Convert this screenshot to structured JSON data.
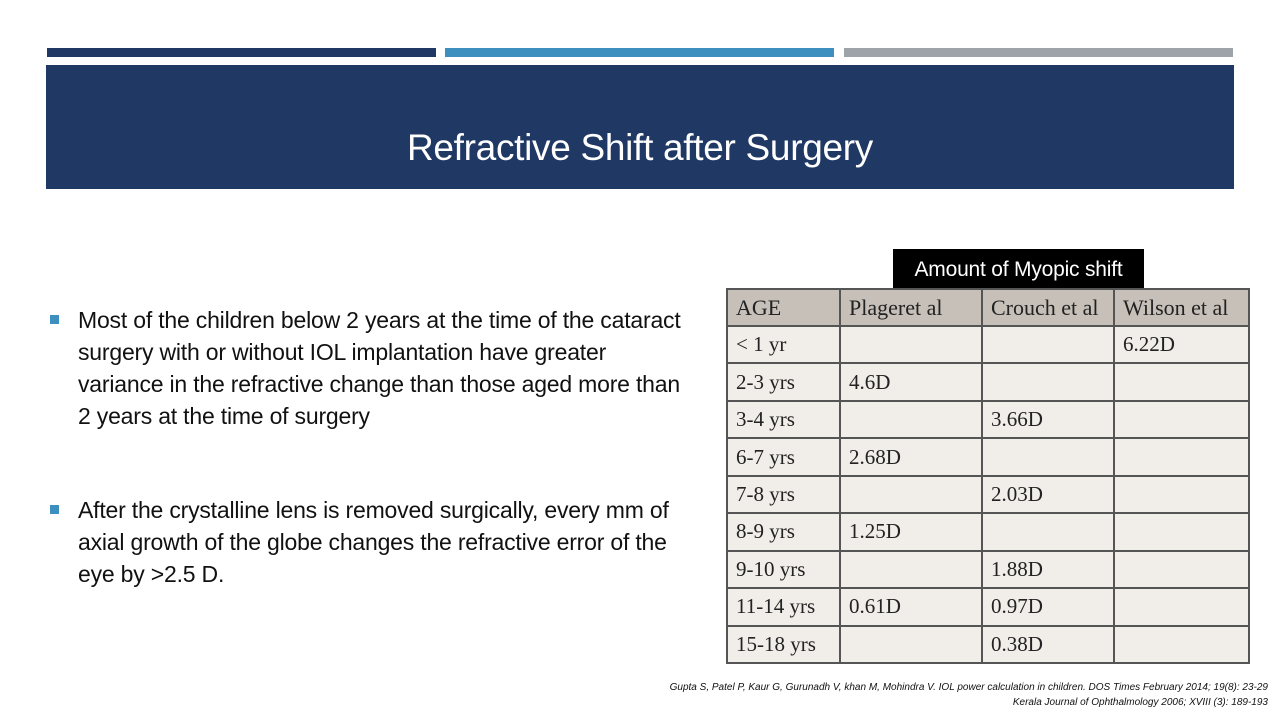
{
  "slide": {
    "title": "Refractive Shift after Surgery"
  },
  "bullets": [
    "Most of the children below 2 years at the time of the cataract surgery with or without IOL implantation have greater variance in the refractive change than those aged more than 2 years at the time of surgery",
    "After the crystalline lens is removed surgically, every mm of axial growth of the globe changes the refractive error of the eye by >2.5 D."
  ],
  "table": {
    "caption": "Amount of Myopic shift",
    "headers": [
      "AGE",
      "Plageret al",
      "Crouch et al",
      "Wilson et al"
    ],
    "rows": [
      [
        "< 1 yr",
        "",
        "",
        "6.22D"
      ],
      [
        "2-3 yrs",
        "4.6D",
        "",
        ""
      ],
      [
        "3-4 yrs",
        "",
        "3.66D",
        ""
      ],
      [
        "6-7 yrs",
        "2.68D",
        "",
        ""
      ],
      [
        "7-8 yrs",
        "",
        "2.03D",
        ""
      ],
      [
        "8-9 yrs",
        "1.25D",
        "",
        ""
      ],
      [
        "9-10 yrs",
        "",
        "1.88D",
        ""
      ],
      [
        "11-14 yrs",
        "0.61D",
        "0.97D",
        ""
      ],
      [
        "15-18 yrs",
        "",
        "0.38D",
        ""
      ]
    ]
  },
  "references": [
    "Gupta S, Patel P, Kaur G, Gurunadh V, khan M, Mohindra V. IOL power calculation in children. DOS Times February 2014; 19(8): 23-29",
    "Kerala Journal of Ophthalmology 2006; XVIII (3): 189-193"
  ],
  "colors": {
    "title_bar": "#1f3864",
    "stripe_1": "#1f3864",
    "stripe_2": "#3d8fbf",
    "stripe_3": "#9ea3aa",
    "bullet_marker": "#3d8fbf"
  }
}
